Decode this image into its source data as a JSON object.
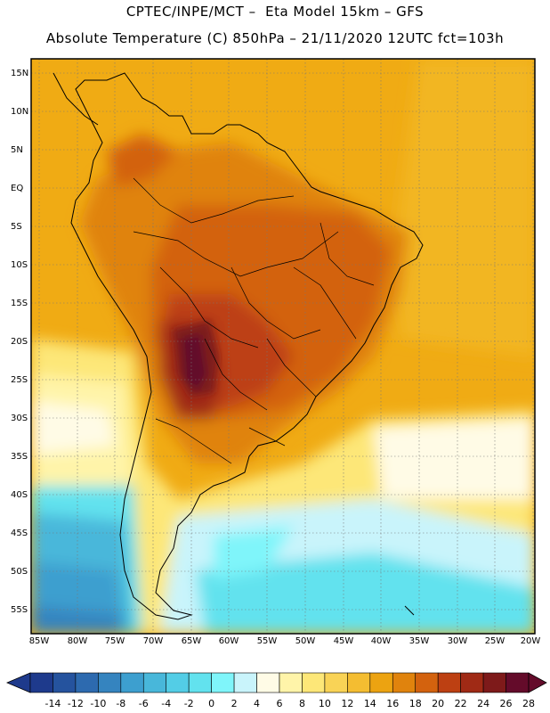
{
  "header": {
    "line1": "CPTEC/INPE/MCT –  Eta Model 15km – GFS",
    "line2": "Absolute Temperature (C) 850hPa – 21/11/2020 12UTC fct=103h"
  },
  "map": {
    "lat_labels": [
      "15N",
      "10N",
      "5N",
      "EQ",
      "5S",
      "10S",
      "15S",
      "20S",
      "25S",
      "30S",
      "35S",
      "40S",
      "45S",
      "50S",
      "55S"
    ],
    "lon_labels": [
      "85W",
      "80W",
      "75W",
      "70W",
      "65W",
      "60W",
      "55W",
      "50W",
      "45W",
      "40W",
      "35W",
      "30W",
      "25W",
      "20W"
    ]
  },
  "colorbar": {
    "labels": [
      "-14",
      "-12",
      "-10",
      "-8",
      "-6",
      "-4",
      "-2",
      "0",
      "2",
      "4",
      "6",
      "8",
      "10",
      "12",
      "14",
      "16",
      "18",
      "20",
      "22",
      "24",
      "26",
      "28"
    ],
    "colors": [
      "#1e3a8c",
      "#25539e",
      "#2d6aaf",
      "#3584bf",
      "#3d9fcf",
      "#48b7da",
      "#53cde6",
      "#62e2ee",
      "#7ff5fa",
      "#c9f4fb",
      "#fffbe6",
      "#fff4a9",
      "#fde778",
      "#f9d356",
      "#f4bd31",
      "#eca311",
      "#e0830d",
      "#d3620e",
      "#bd4012",
      "#a02a15",
      "#7e1a1a",
      "#640b2a"
    ]
  },
  "legend_colors": {
    "land_dark": "#7e1a1a",
    "ocean_warm": "#f0ab14",
    "ocean_cold": "#3d9fcf"
  }
}
